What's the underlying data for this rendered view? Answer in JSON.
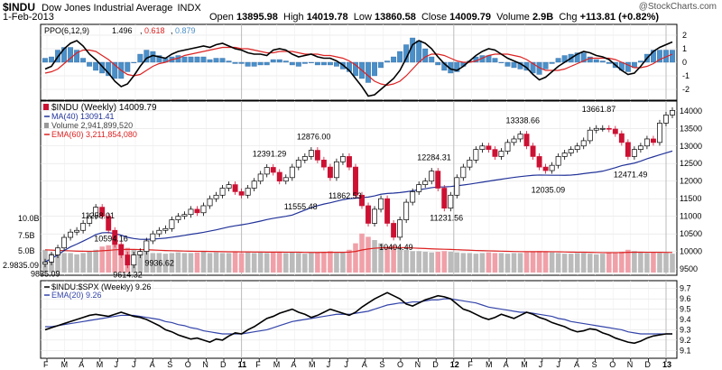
{
  "header": {
    "symbol": "$INDU",
    "name": "Dow Jones Industrial Average",
    "exchange": "INDX",
    "date": "1-Feb-2013",
    "open_label": "Open",
    "open": "13895.98",
    "high_label": "High",
    "high": "14019.78",
    "low_label": "Low",
    "low": "13860.58",
    "close_label": "Close",
    "close": "14009.79",
    "volume_label": "Volume",
    "volume": "2.9B",
    "chg_label": "Chg",
    "chg": "+113.81 (+0.82%)",
    "credit": "@StockCharts.com"
  },
  "colors": {
    "ppo_line": "#000000",
    "ppo_signal": "#dd2222",
    "ppo_hist": "#4a8fc8",
    "ma": "#223399",
    "up_candle": "#ffffff",
    "down_candle": "#cc1133",
    "volume_up": "#bbbbbb",
    "volume_down": "#f0a0a8",
    "ema": "#dd2222",
    "ratio": "#000000",
    "ratio_ema": "#3344aa"
  },
  "chart_data": [
    {
      "type": "line",
      "panel": "ppo",
      "title": "PPO(6,12,9)",
      "legend": {
        "ppo": "1.496",
        "signal": "0.618",
        "histogram": "0.879"
      },
      "ylim": [
        -2.6,
        2.6
      ],
      "yticks": [
        -2,
        -1,
        0,
        1,
        2
      ],
      "grid": true,
      "ppo": [
        -0.5,
        -0.3,
        0.4,
        1.0,
        1.4,
        1.6,
        1.2,
        0.6,
        0.2,
        -0.3,
        -0.8,
        -1.4,
        -1.8,
        -1.6,
        -1.0,
        -0.3,
        0.3,
        0.5,
        0.4,
        0.3,
        0.6,
        0.8,
        0.9,
        1.0,
        1.1,
        1.2,
        1.1,
        1.3,
        1.4,
        1.2,
        1.0,
        0.9,
        0.7,
        0.6,
        0.6,
        0.5,
        0.9,
        1.0,
        0.9,
        0.6,
        0.4,
        0.5,
        0.6,
        0.4,
        0.3,
        0.3,
        0.1,
        -0.2,
        -0.6,
        -1.2,
        -1.8,
        -2.5,
        -2.4,
        -2.0,
        -1.6,
        -1.2,
        -0.6,
        0.3,
        1.3,
        1.6,
        1.4,
        1.0,
        0.4,
        -0.1,
        -0.5,
        -0.6,
        -0.3,
        0.1,
        0.5,
        0.8,
        1.0,
        0.9,
        0.6,
        0.3,
        0.1,
        -0.1,
        -0.4,
        -0.9,
        -1.3,
        -1.1,
        -0.7,
        -0.3,
        0.0,
        0.3,
        0.6,
        0.8,
        0.7,
        0.5,
        0.4,
        0.2,
        -0.2,
        -0.6,
        -0.9,
        -0.8,
        -0.3,
        0.3,
        0.8,
        1.1,
        1.3,
        1.5
      ],
      "signal": [
        -0.8,
        -0.7,
        -0.5,
        -0.1,
        0.3,
        0.7,
        0.9,
        0.9,
        0.8,
        0.5,
        0.2,
        -0.2,
        -0.6,
        -0.9,
        -1.0,
        -0.9,
        -0.6,
        -0.3,
        -0.1,
        0.0,
        0.2,
        0.3,
        0.5,
        0.6,
        0.7,
        0.8,
        0.9,
        1.0,
        1.1,
        1.1,
        1.1,
        1.0,
        1.0,
        0.9,
        0.8,
        0.7,
        0.7,
        0.8,
        0.8,
        0.8,
        0.7,
        0.6,
        0.6,
        0.6,
        0.5,
        0.5,
        0.4,
        0.3,
        0.1,
        -0.2,
        -0.6,
        -1.0,
        -1.4,
        -1.6,
        -1.7,
        -1.6,
        -1.4,
        -1.0,
        -0.5,
        0.0,
        0.4,
        0.6,
        0.6,
        0.5,
        0.3,
        0.1,
        0.0,
        0.0,
        0.1,
        0.3,
        0.5,
        0.6,
        0.6,
        0.6,
        0.5,
        0.4,
        0.2,
        -0.1,
        -0.4,
        -0.6,
        -0.6,
        -0.6,
        -0.5,
        -0.3,
        -0.1,
        0.1,
        0.3,
        0.3,
        0.3,
        0.3,
        0.2,
        0.0,
        -0.2,
        -0.4,
        -0.4,
        -0.3,
        -0.1,
        0.2,
        0.4,
        0.6
      ]
    },
    {
      "type": "candlestick",
      "panel": "price",
      "title": "$INDU (Weekly) 14009.79",
      "legend": {
        "ma": "MA(40) 13091.41",
        "volume": "Volume 2,941,899,520",
        "ema": "EMA(60) 3,211,854,080"
      },
      "ylim": [
        9400,
        14200
      ],
      "yticks": [
        9500,
        10000,
        10500,
        11000,
        11500,
        12000,
        12500,
        13000,
        13500,
        14000
      ],
      "volume_ticks": [
        "10.0B",
        "7.5B",
        "5.0B",
        "2.9835.09"
      ],
      "close": [
        9700,
        9900,
        10100,
        10400,
        10550,
        10600,
        10800,
        11000,
        11258,
        11000,
        10600,
        10200,
        9900,
        9614,
        9900,
        10000,
        10300,
        10500,
        10600,
        10650,
        10900,
        11000,
        11050,
        11200,
        11100,
        11300,
        11500,
        11600,
        11800,
        11900,
        11700,
        11600,
        11800,
        12000,
        12200,
        12391,
        12250,
        12000,
        12100,
        12400,
        12600,
        12700,
        12876,
        12600,
        12400,
        12100,
        12550,
        12700,
        12400,
        11600,
        11300,
        10800,
        11200,
        11500,
        10800,
        10404,
        10900,
        11400,
        11700,
        11900,
        12000,
        12284,
        11800,
        11231,
        11600,
        12100,
        12400,
        12600,
        12900,
        13000,
        12900,
        12700,
        12850,
        13100,
        13200,
        13338,
        13000,
        12700,
        12400,
        12300,
        12450,
        12700,
        12800,
        12900,
        13000,
        13150,
        13450,
        13500,
        13500,
        13480,
        13350,
        13100,
        12700,
        12900,
        13000,
        13200,
        13100,
        13650,
        13880,
        14009.79
      ],
      "volume_pct": [
        35,
        30,
        28,
        30,
        30,
        28,
        30,
        32,
        35,
        40,
        42,
        45,
        40,
        38,
        35,
        33,
        32,
        30,
        30,
        29,
        30,
        31,
        30,
        30,
        31,
        32,
        30,
        31,
        30,
        30,
        32,
        30,
        31,
        30,
        31,
        30,
        31,
        32,
        30,
        31,
        30,
        29,
        30,
        31,
        32,
        33,
        30,
        31,
        35,
        45,
        60,
        55,
        50,
        45,
        40,
        42,
        38,
        35,
        33,
        33,
        32,
        31,
        32,
        33,
        32,
        31,
        30,
        30,
        29,
        30,
        31,
        30,
        30,
        29,
        30,
        30,
        31,
        32,
        33,
        32,
        31,
        30,
        29,
        29,
        30,
        30,
        29,
        28,
        29,
        30,
        31,
        32,
        35,
        33,
        32,
        30,
        31,
        30,
        30,
        29
      ],
      "annotations": [
        {
          "label": "9835.09",
          "i": 0,
          "price": 9650
        },
        {
          "label": "11258.01",
          "i": 8,
          "price": 11300
        },
        {
          "label": "10594.16",
          "i": 10,
          "price": 10650
        },
        {
          "label": "9614.32",
          "i": 13,
          "price": 9614
        },
        {
          "label": "9936.62",
          "i": 18,
          "price": 9950
        },
        {
          "label": "12391.29",
          "i": 35,
          "price": 12391
        },
        {
          "label": "12876.00",
          "i": 42,
          "price": 12876
        },
        {
          "label": "11555.48",
          "i": 40,
          "price": 11555
        },
        {
          "label": "11862.53",
          "i": 47,
          "price": 11862
        },
        {
          "label": "12284.31",
          "i": 61,
          "price": 12284
        },
        {
          "label": "10404.49",
          "i": 55,
          "price": 10404
        },
        {
          "label": "11231.56",
          "i": 63,
          "price": 11231
        },
        {
          "label": "13338.66",
          "i": 75,
          "price": 13338
        },
        {
          "label": "12035.09",
          "i": 79,
          "price": 12035
        },
        {
          "label": "13661.87",
          "i": 87,
          "price": 13661
        },
        {
          "label": "12471.49",
          "i": 92,
          "price": 12471
        }
      ]
    },
    {
      "type": "line",
      "panel": "ratio",
      "title": "$INDU:$SPX (Weekly) 9.26",
      "legend": {
        "ema": "EMA(20) 9.26"
      },
      "ylim": [
        9.05,
        9.75
      ],
      "yticks": [
        9.1,
        9.2,
        9.3,
        9.4,
        9.5,
        9.6,
        9.7
      ],
      "ratio": [
        9.3,
        9.32,
        9.34,
        9.36,
        9.38,
        9.4,
        9.42,
        9.44,
        9.45,
        9.44,
        9.43,
        9.45,
        9.47,
        9.45,
        9.43,
        9.42,
        9.4,
        9.37,
        9.34,
        9.3,
        9.28,
        9.25,
        9.23,
        9.21,
        9.22,
        9.2,
        9.18,
        9.21,
        9.2,
        9.24,
        9.27,
        9.26,
        9.3,
        9.33,
        9.37,
        9.41,
        9.43,
        9.46,
        9.48,
        9.5,
        9.47,
        9.45,
        9.42,
        9.44,
        9.47,
        9.5,
        9.48,
        9.46,
        9.44,
        9.47,
        9.52,
        9.56,
        9.6,
        9.63,
        9.66,
        9.63,
        9.6,
        9.55,
        9.53,
        9.56,
        9.59,
        9.61,
        9.63,
        9.62,
        9.6,
        9.55,
        9.5,
        9.48,
        9.45,
        9.42,
        9.4,
        9.42,
        9.45,
        9.43,
        9.41,
        9.44,
        9.47,
        9.45,
        9.42,
        9.4,
        9.37,
        9.35,
        9.33,
        9.3,
        9.28,
        9.29,
        9.31,
        9.3,
        9.27,
        9.25,
        9.22,
        9.2,
        9.18,
        9.17,
        9.19,
        9.22,
        9.24,
        9.25,
        9.26,
        9.26
      ],
      "ema": [
        9.33,
        9.33,
        9.34,
        9.35,
        9.36,
        9.37,
        9.38,
        9.39,
        9.4,
        9.41,
        9.42,
        9.43,
        9.44,
        9.44,
        9.44,
        9.43,
        9.42,
        9.41,
        9.4,
        9.38,
        9.37,
        9.35,
        9.34,
        9.32,
        9.31,
        9.29,
        9.28,
        9.27,
        9.26,
        9.26,
        9.26,
        9.26,
        9.27,
        9.28,
        9.29,
        9.3,
        9.32,
        9.34,
        9.36,
        9.38,
        9.39,
        9.4,
        9.41,
        9.42,
        9.43,
        9.44,
        9.45,
        9.45,
        9.45,
        9.46,
        9.47,
        9.48,
        9.5,
        9.52,
        9.54,
        9.55,
        9.56,
        9.56,
        9.57,
        9.57,
        9.58,
        9.59,
        9.59,
        9.6,
        9.6,
        9.59,
        9.58,
        9.57,
        9.56,
        9.54,
        9.52,
        9.51,
        9.5,
        9.49,
        9.48,
        9.47,
        9.47,
        9.46,
        9.45,
        9.44,
        9.43,
        9.41,
        9.4,
        9.38,
        9.37,
        9.36,
        9.35,
        9.34,
        9.33,
        9.32,
        9.31,
        9.3,
        9.28,
        9.27,
        9.26,
        9.26,
        9.26,
        9.26,
        9.26,
        9.26
      ]
    }
  ],
  "x_axis": {
    "labels": [
      "F",
      "M",
      "A",
      "M",
      "J",
      "J",
      "A",
      "S",
      "O",
      "N",
      "D",
      "11",
      "F",
      "M",
      "A",
      "M",
      "J",
      "J",
      "A",
      "S",
      "O",
      "N",
      "D",
      "12",
      "F",
      "M",
      "A",
      "M",
      "J",
      "J",
      "A",
      "S",
      "O",
      "N",
      "D",
      "13"
    ],
    "major": [
      "11",
      "12",
      "13"
    ]
  }
}
